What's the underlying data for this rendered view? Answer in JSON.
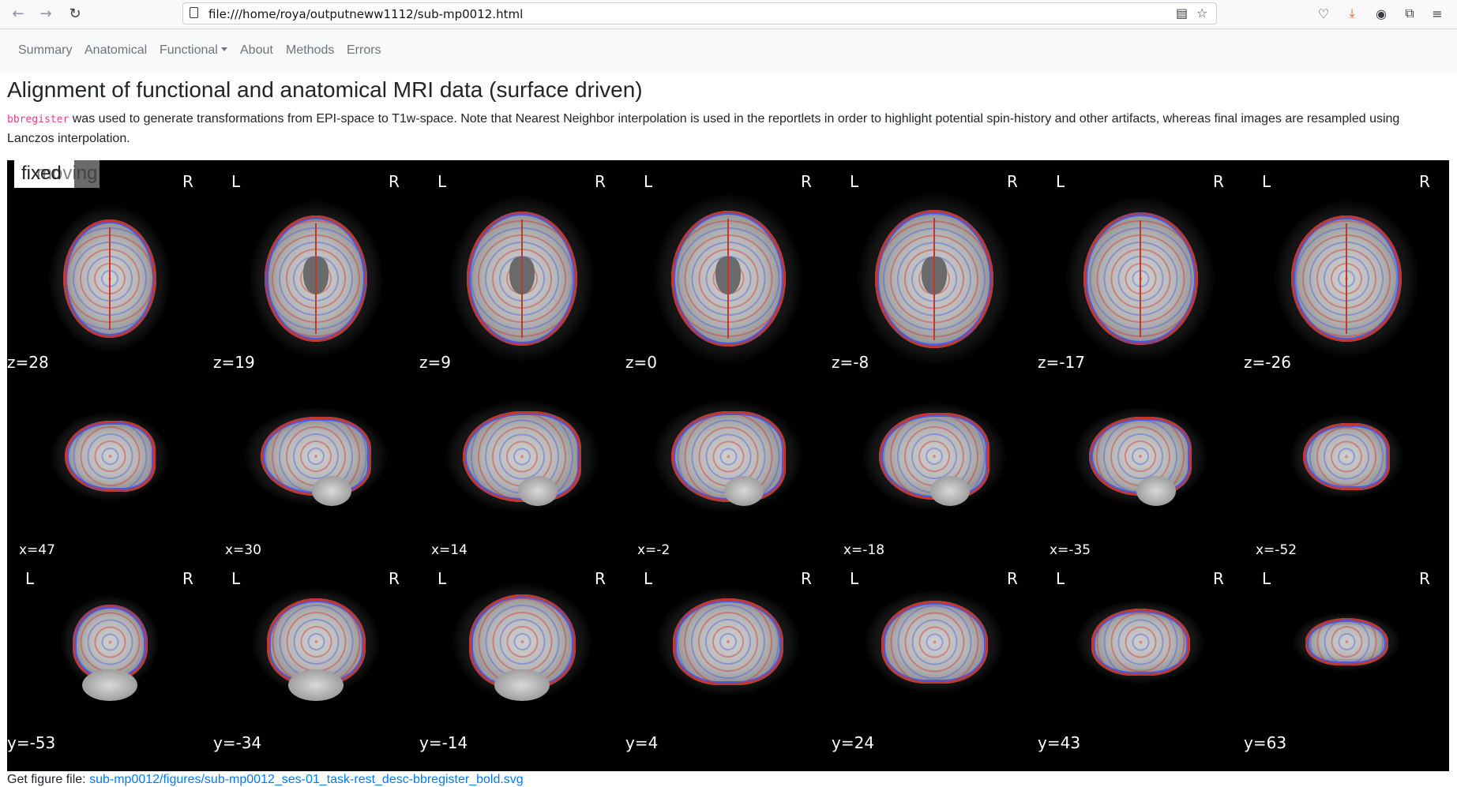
{
  "browser": {
    "url": "file:///home/roya/outputneww1112/sub-mp0012.html",
    "back_icon": "back-arrow-icon",
    "forward_icon": "forward-arrow-icon",
    "reload_icon": "reload-icon"
  },
  "navbar": {
    "items": [
      "Summary",
      "Anatomical",
      "Functional",
      "About",
      "Methods",
      "Errors"
    ]
  },
  "section": {
    "title": "Alignment of functional and anatomical MRI data (surface driven)",
    "code": "bbregister",
    "description": "was used to generate transformations from EPI-space to T1w-space. Note that Nearest Neighbor interpolation is used in the reportlets in order to highlight potential spin-history and other artifacts, whereas final images are resampled using Lanczos interpolation."
  },
  "figure": {
    "toggle_fixed": "fixed",
    "toggle_moving": "moving",
    "left_label": "L",
    "right_label": "R",
    "axial_coords": [
      "z=28",
      "z=19",
      "z=9",
      "z=0",
      "z=-8",
      "z=-17",
      "z=-26"
    ],
    "sagittal_coords": [
      "x=47",
      "x=30",
      "x=14",
      "x=-2",
      "x=-18",
      "x=-35",
      "x=-52"
    ],
    "coronal_coords": [
      "y=-53",
      "y=-34",
      "y=-14",
      "y=4",
      "y=24",
      "y=43",
      "y=63"
    ],
    "outline_colors": {
      "pial": "#c0392b",
      "white": "#4a5be0"
    }
  },
  "figure_link": {
    "prefix": "Get figure file:",
    "href_text": "sub-mp0012/figures/sub-mp0012_ses-01_task-rest_desc-bbregister_bold.svg"
  }
}
